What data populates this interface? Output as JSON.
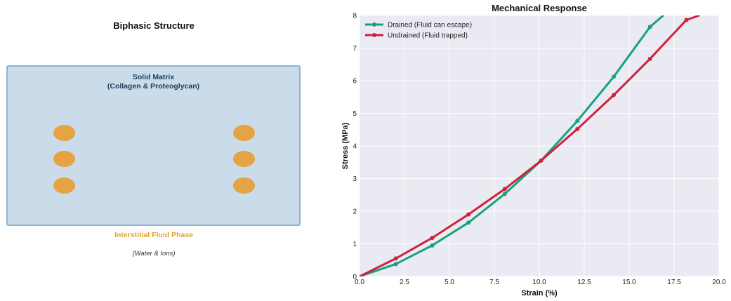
{
  "left_panel": {
    "title": "Biphasic Structure",
    "matrix_label_line1": "Solid Matrix",
    "matrix_label_line2": "(Collagen & Proteoglycan)",
    "fluid_label": "Interstitial Fluid Phase",
    "fluid_sublabel": "(Water & Ions)",
    "colors": {
      "matrix_fill": "#cadcea",
      "matrix_border": "#8fb5cd",
      "fluid_blob": "#e6a343",
      "fluid_text": "#e1a233"
    }
  },
  "chart_data": {
    "type": "line",
    "title": "Mechanical Response",
    "xlabel": "Strain (%)",
    "ylabel": "Stress (MPa)",
    "xlim": [
      0,
      20
    ],
    "ylim": [
      0,
      8
    ],
    "xticks": [
      "0.0",
      "2.5",
      "5.0",
      "7.5",
      "10.0",
      "12.5",
      "15.0",
      "17.5",
      "20.0"
    ],
    "yticks": [
      "0",
      "1",
      "2",
      "3",
      "4",
      "5",
      "6",
      "7",
      "8"
    ],
    "grid": true,
    "legend_position": "top-left",
    "series": [
      {
        "name": "Drained (Fluid can escape)",
        "color": "#1aa07c",
        "x": [
          0,
          2.02,
          4.04,
          6.06,
          8.08,
          10.1,
          12.12,
          14.14,
          16.16,
          16.9
        ],
        "y": [
          0,
          0.38,
          0.95,
          1.65,
          2.53,
          3.55,
          4.77,
          6.12,
          7.65,
          8.0
        ],
        "markers": [
          2.02,
          4.04,
          6.06,
          8.08,
          10.1,
          12.12,
          14.14,
          16.16
        ]
      },
      {
        "name": "Undrained (Fluid trapped)",
        "color": "#d0203f",
        "x": [
          0,
          2.02,
          4.04,
          6.06,
          8.08,
          10.1,
          12.12,
          14.14,
          16.16,
          18.18,
          18.9
        ],
        "y": [
          0,
          0.55,
          1.18,
          1.9,
          2.68,
          3.55,
          4.52,
          5.56,
          6.67,
          7.86,
          8.0
        ],
        "markers": [
          2.02,
          4.04,
          6.06,
          8.08,
          10.1,
          12.12,
          14.14,
          16.16,
          18.18
        ]
      }
    ]
  }
}
